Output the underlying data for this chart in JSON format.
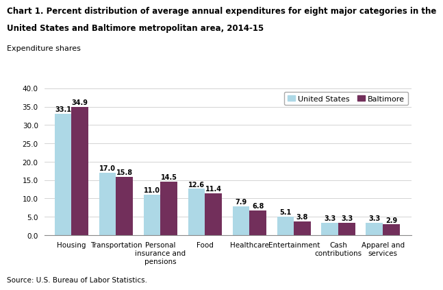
{
  "title_line1": "Chart 1. Percent distribution of average annual expenditures for eight major categories in the",
  "title_line2": "United States and Baltimore metropolitan area, 2014-15",
  "ylabel": "Expenditure shares",
  "source": "Source: U.S. Bureau of Labor Statistics.",
  "categories": [
    "Housing",
    "Transportation",
    "Personal\ninsurance and\npensions",
    "Food",
    "Healthcare",
    "Entertainment",
    "Cash\ncontributions",
    "Apparel and\nservices"
  ],
  "us_values": [
    33.1,
    17.0,
    11.0,
    12.6,
    7.9,
    5.1,
    3.3,
    3.3
  ],
  "balt_values": [
    34.9,
    15.8,
    14.5,
    11.4,
    6.8,
    3.8,
    3.3,
    2.9
  ],
  "us_color": "#ADD8E6",
  "balt_color": "#722F5B",
  "ylim": [
    0,
    40.0
  ],
  "yticks": [
    0.0,
    5.0,
    10.0,
    15.0,
    20.0,
    25.0,
    30.0,
    35.0,
    40.0
  ],
  "legend_labels": [
    "United States",
    "Baltimore"
  ],
  "bar_width": 0.38,
  "title_fontsize": 8.5,
  "ylabel_fontsize": 8,
  "tick_fontsize": 7.5,
  "annotation_fontsize": 7,
  "legend_fontsize": 8,
  "source_fontsize": 7.5
}
